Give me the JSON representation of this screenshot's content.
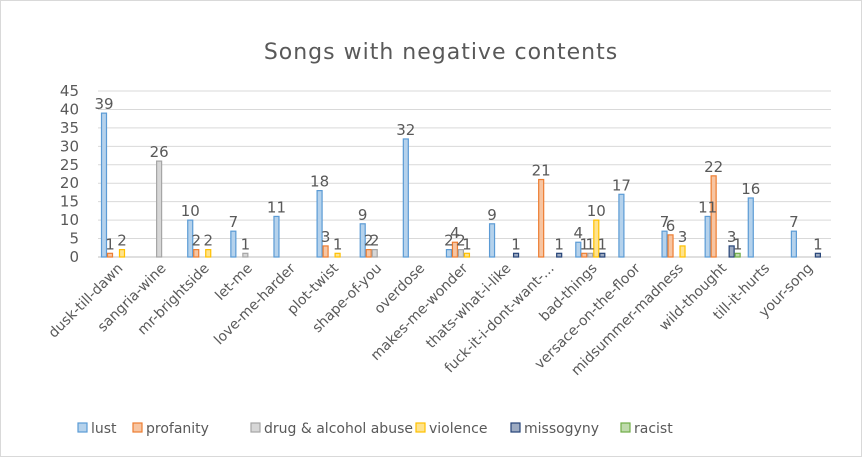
{
  "chart_data": {
    "type": "bar",
    "title": "Songs with negative contents",
    "xlabel": "",
    "ylabel": "",
    "ylim": [
      0,
      45
    ],
    "yticks": [
      0,
      5,
      10,
      15,
      20,
      25,
      30,
      35,
      40,
      45
    ],
    "grid": true,
    "legend_position": "bottom",
    "categories": [
      "dusk-till-dawn",
      "sangria-wine",
      "mr-brightside",
      "let-me",
      "love-me-harder",
      "plot-twist",
      "shape-of-you",
      "overdose",
      "makes-me-wonder",
      "thats-what-i-like",
      "fuck-it-i-dont-want-...",
      "bad-things",
      "versace-on-the-floor",
      "midsummer-madness",
      "wild-thought",
      "till-it-hurts",
      "your-song"
    ],
    "series": [
      {
        "name": "lust",
        "color": "#5b9bd5",
        "values": [
          39,
          0,
          10,
          7,
          11,
          18,
          9,
          32,
          2,
          9,
          0,
          4,
          17,
          7,
          11,
          16,
          7
        ]
      },
      {
        "name": "profanity",
        "color": "#ed7d31",
        "values": [
          1,
          0,
          2,
          0,
          0,
          3,
          2,
          0,
          4,
          0,
          21,
          1,
          0,
          6,
          22,
          0,
          0
        ]
      },
      {
        "name": "drug & alcohol abuse",
        "color": "#a5a5a5",
        "values": [
          0,
          26,
          0,
          1,
          0,
          0,
          2,
          0,
          2,
          0,
          0,
          1,
          0,
          0,
          0,
          0,
          0
        ]
      },
      {
        "name": "violence",
        "color": "#ffc000",
        "values": [
          2,
          0,
          2,
          0,
          0,
          1,
          0,
          0,
          1,
          0,
          0,
          10,
          0,
          3,
          0,
          0,
          0
        ]
      },
      {
        "name": "missogyny",
        "color": "#264478",
        "values": [
          0,
          0,
          0,
          0,
          0,
          0,
          0,
          0,
          0,
          1,
          1,
          1,
          0,
          0,
          3,
          0,
          1
        ]
      },
      {
        "name": "racist",
        "color": "#70ad47",
        "values": [
          0,
          0,
          0,
          0,
          0,
          0,
          0,
          0,
          0,
          0,
          0,
          0,
          0,
          0,
          1,
          0,
          0
        ]
      }
    ]
  }
}
